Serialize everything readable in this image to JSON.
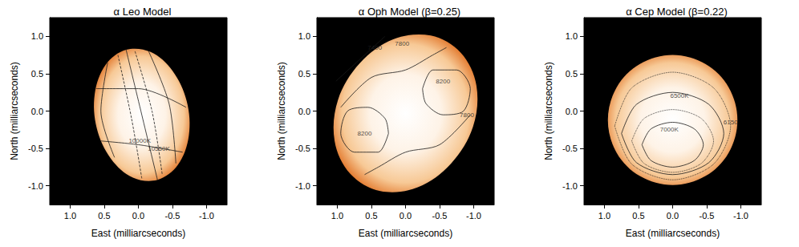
{
  "chart_data": [
    {
      "type": "contour",
      "title": "α Leo Model",
      "x_label": "East (milliarcseconds)",
      "y_label": "North (milliarcseconds)",
      "xlim": [
        1.3,
        -1.3
      ],
      "ylim": [
        -1.25,
        1.25
      ],
      "xticks": [
        {
          "value": 1,
          "label": "1.0"
        },
        0.5,
        {
          "value": 0,
          "label": "0.0"
        },
        -0.5,
        {
          "value": -1,
          "label": "-1.0"
        }
      ],
      "yticks": [
        {
          "value": -1,
          "label": "-1.0"
        },
        -0.5,
        {
          "value": 0,
          "label": "0.0"
        },
        0.5,
        {
          "value": 1,
          "label": "1.0"
        }
      ],
      "disk": {
        "outline": [
          [
            0.18,
            0.82
          ],
          [
            0.48,
            0.62
          ],
          [
            0.64,
            0.23
          ],
          [
            0.61,
            -0.23
          ],
          [
            0.4,
            -0.64
          ],
          [
            0.08,
            -0.89
          ],
          [
            -0.28,
            -0.92
          ],
          [
            -0.58,
            -0.72
          ],
          [
            -0.74,
            -0.33
          ],
          [
            -0.71,
            0.13
          ],
          [
            -0.5,
            0.54
          ],
          [
            -0.18,
            0.79
          ]
        ]
      },
      "contours": [
        {
          "points": [
            [
              0.18,
              0.82
            ],
            [
              -0.05,
              -0.05
            ],
            [
              -0.28,
              -0.92
            ]
          ],
          "line_style": "solid"
        },
        {
          "points": [
            [
              0.45,
              0.65
            ],
            [
              0.55,
              0.0
            ],
            [
              0.35,
              -0.62
            ]
          ],
          "line_style": "solid"
        },
        {
          "points": [
            [
              -0.15,
              0.8
            ],
            [
              -0.45,
              0.1
            ],
            [
              -0.55,
              -0.7
            ]
          ],
          "line_style": "solid"
        },
        {
          "points": [
            [
              0.62,
              0.3
            ],
            [
              0.0,
              0.3
            ],
            [
              -0.7,
              0.05
            ]
          ],
          "line_style": "solid"
        },
        {
          "points": [
            [
              0.55,
              -0.4
            ],
            [
              0.0,
              -0.45
            ],
            [
              -0.65,
              -0.55
            ]
          ],
          "line_style": "solid"
        },
        {
          "label": "10000K",
          "label_at": [
            -0.02,
            -0.4
          ],
          "points": [
            [
              0.3,
              0.75
            ],
            [
              0.1,
              -0.1
            ],
            [
              -0.05,
              -0.9
            ]
          ],
          "line_style": "dashed"
        },
        {
          "label": "10550K",
          "label_at": [
            -0.3,
            -0.5
          ],
          "points": [
            [
              0.05,
              0.8
            ],
            [
              -0.2,
              0.0
            ],
            [
              -0.35,
              -0.85
            ]
          ],
          "line_style": "dashed"
        }
      ]
    },
    {
      "type": "contour",
      "title": "α Oph Model (β=0.25)",
      "x_label": "East (milliarcseconds)",
      "y_label": "North (milliarcseconds)",
      "xlim": [
        1.3,
        -1.3
      ],
      "ylim": [
        -1.25,
        1.25
      ],
      "xticks": [
        {
          "value": 1,
          "label": "1.0"
        },
        0.5,
        {
          "value": 0,
          "label": "0.0"
        },
        -0.5,
        {
          "value": -1,
          "label": "-1.0"
        }
      ],
      "yticks": [
        {
          "value": -1,
          "label": "-1.0"
        },
        -0.5,
        {
          "value": 0,
          "label": "0.0"
        },
        0.5,
        {
          "value": 1,
          "label": "1.0"
        }
      ],
      "disk": {
        "outline": [
          [
            -0.81,
            0.78
          ],
          [
            -0.37,
            1.01
          ],
          [
            0.18,
            0.96
          ],
          [
            0.67,
            0.64
          ],
          [
            0.99,
            0.15
          ],
          [
            1.04,
            -0.4
          ],
          [
            0.81,
            -0.84
          ],
          [
            0.37,
            -1.07
          ],
          [
            -0.18,
            -1.02
          ],
          [
            -0.67,
            -0.7
          ],
          [
            -0.99,
            -0.21
          ],
          [
            -1.04,
            0.34
          ]
        ]
      },
      "contours": [
        {
          "label": "7400",
          "label_at": [
            0.45,
            0.85
          ],
          "points": [
            [
              1.02,
              0.4
            ],
            [
              0.6,
              0.75
            ],
            [
              0.3,
              1.0
            ]
          ],
          "line_style": "solid"
        },
        {
          "label": "7800",
          "label_at": [
            0.05,
            0.9
          ],
          "points": [
            [
              0.95,
              0.05
            ],
            [
              0.5,
              0.45
            ],
            [
              0.0,
              0.55
            ],
            [
              -0.4,
              0.75
            ],
            [
              -0.6,
              0.85
            ]
          ],
          "line_style": "solid"
        },
        {
          "label": "7800",
          "label_at": [
            -0.9,
            -0.05
          ],
          "points": [
            [
              -0.95,
              -0.05
            ],
            [
              -0.5,
              -0.45
            ],
            [
              0.0,
              -0.55
            ],
            [
              0.4,
              -0.75
            ],
            [
              0.6,
              -0.85
            ]
          ],
          "line_style": "solid"
        },
        {
          "label": "8200",
          "label_at": [
            -0.55,
            0.4
          ],
          "points": [
            [
              -0.25,
              0.3
            ],
            [
              -0.4,
              0.55
            ],
            [
              -0.75,
              0.55
            ],
            [
              -0.95,
              0.3
            ],
            [
              -0.85,
              0.0
            ],
            [
              -0.55,
              -0.05
            ],
            [
              -0.3,
              0.1
            ],
            [
              -0.25,
              0.3
            ]
          ],
          "line_style": "solid"
        },
        {
          "label": "8200",
          "label_at": [
            0.6,
            -0.3
          ],
          "points": [
            [
              0.25,
              -0.3
            ],
            [
              0.4,
              -0.55
            ],
            [
              0.75,
              -0.55
            ],
            [
              0.95,
              -0.3
            ],
            [
              0.85,
              0.0
            ],
            [
              0.55,
              0.05
            ],
            [
              0.3,
              -0.1
            ],
            [
              0.25,
              -0.3
            ]
          ],
          "line_style": "solid"
        }
      ]
    },
    {
      "type": "contour",
      "title": "α Cep Model (β=0.22)",
      "x_label": "East (milliarcseconds)",
      "y_label": "North (milliarcseconds)",
      "xlim": [
        1.3,
        -1.3
      ],
      "ylim": [
        -1.25,
        1.25
      ],
      "xticks": [
        {
          "value": 1,
          "label": "1.0"
        },
        0.5,
        {
          "value": 0,
          "label": "0.0"
        },
        -0.5,
        {
          "value": -1,
          "label": "-1.0"
        }
      ],
      "yticks": [
        {
          "value": -1,
          "label": "-1.0"
        },
        -0.5,
        {
          "value": 0,
          "label": "0.0"
        },
        0.5,
        {
          "value": 1,
          "label": "1.0"
        }
      ],
      "disk": {
        "outline": [
          [
            0.95,
            -0.12
          ],
          [
            0.82,
            0.32
          ],
          [
            0.48,
            0.63
          ],
          [
            0.0,
            0.75
          ],
          [
            -0.48,
            0.63
          ],
          [
            -0.82,
            0.32
          ],
          [
            -0.95,
            -0.12
          ],
          [
            -0.82,
            -0.56
          ],
          [
            -0.48,
            -0.87
          ],
          [
            0.0,
            -0.99
          ],
          [
            0.48,
            -0.87
          ],
          [
            0.82,
            -0.56
          ]
        ]
      },
      "contours": [
        {
          "label": "6150",
          "label_at": [
            -0.85,
            -0.15
          ],
          "points": [
            [
              0.85,
              -0.2
            ],
            [
              0.6,
              0.31
            ],
            [
              0.0,
              0.52
            ],
            [
              -0.6,
              0.31
            ],
            [
              -0.85,
              -0.2
            ],
            [
              -0.6,
              -0.71
            ],
            [
              0.0,
              -0.92
            ],
            [
              0.6,
              -0.71
            ],
            [
              0.85,
              -0.2
            ]
          ],
          "line_style": "dotted"
        },
        {
          "label": "6500K",
          "label_at": [
            -0.1,
            0.2
          ],
          "points": [
            [
              0.75,
              -0.3
            ],
            [
              0.53,
              0.09
            ],
            [
              0.0,
              0.25
            ],
            [
              -0.53,
              0.09
            ],
            [
              -0.75,
              -0.3
            ],
            [
              -0.53,
              -0.69
            ],
            [
              0.0,
              -0.85
            ],
            [
              0.53,
              -0.69
            ],
            [
              0.75,
              -0.3
            ]
          ],
          "line_style": "solid"
        },
        {
          "points": [
            [
              0.6,
              -0.4
            ],
            [
              0.42,
              -0.1
            ],
            [
              0.0,
              0.02
            ],
            [
              -0.42,
              -0.1
            ],
            [
              -0.6,
              -0.4
            ],
            [
              -0.42,
              -0.7
            ],
            [
              0.0,
              -0.82
            ],
            [
              0.42,
              -0.7
            ],
            [
              0.6,
              -0.4
            ]
          ],
          "line_style": "dotted"
        },
        {
          "label": "7000K",
          "label_at": [
            0.05,
            -0.25
          ],
          "points": [
            [
              0.45,
              -0.45
            ],
            [
              0.32,
              -0.24
            ],
            [
              0.0,
              -0.15
            ],
            [
              -0.32,
              -0.24
            ],
            [
              -0.45,
              -0.45
            ],
            [
              -0.32,
              -0.66
            ],
            [
              0.0,
              -0.75
            ],
            [
              0.32,
              -0.66
            ],
            [
              0.45,
              -0.45
            ]
          ],
          "line_style": "solid"
        }
      ]
    }
  ]
}
